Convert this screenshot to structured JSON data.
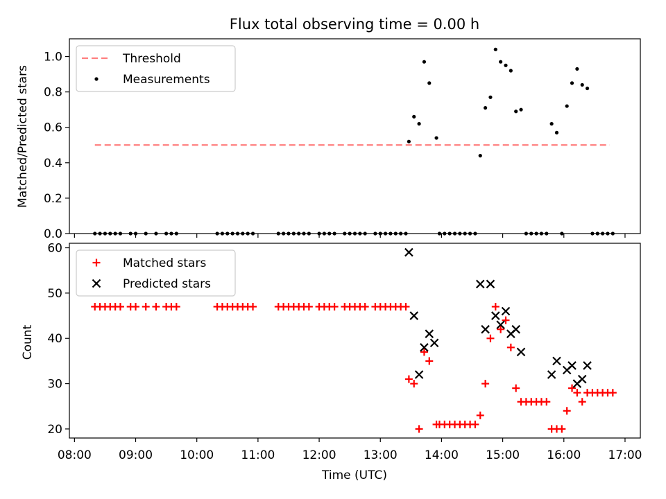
{
  "chart_data": [
    {
      "type": "scatter",
      "title": "Flux total observing time = 0.00 h",
      "ylabel": "Matched/Predicted stars",
      "xlabel": "",
      "ylim": [
        0,
        1.1
      ],
      "yticks": [
        "0.0",
        "0.2",
        "0.4",
        "0.6",
        "0.8",
        "1.0"
      ],
      "legend_position": "top-left",
      "grid": false,
      "threshold": {
        "name": "Threshold",
        "y": 0.5,
        "x_start": "08:20",
        "x_end": "16:45",
        "color": "#ff7f7f",
        "style": "dashed"
      },
      "series": [
        {
          "name": "Measurements",
          "color": "#000000",
          "marker": "dot",
          "points": [
            [
              "08:20",
              0
            ],
            [
              "08:25",
              0
            ],
            [
              "08:30",
              0
            ],
            [
              "08:35",
              0
            ],
            [
              "08:40",
              0
            ],
            [
              "08:45",
              0
            ],
            [
              "08:55",
              0
            ],
            [
              "09:00",
              0
            ],
            [
              "09:10",
              0
            ],
            [
              "09:20",
              0
            ],
            [
              "09:30",
              0
            ],
            [
              "09:35",
              0
            ],
            [
              "09:40",
              0
            ],
            [
              "10:20",
              0
            ],
            [
              "10:25",
              0
            ],
            [
              "10:30",
              0
            ],
            [
              "10:35",
              0
            ],
            [
              "10:40",
              0
            ],
            [
              "10:45",
              0
            ],
            [
              "10:50",
              0
            ],
            [
              "10:55",
              0
            ],
            [
              "11:20",
              0
            ],
            [
              "11:25",
              0
            ],
            [
              "11:30",
              0
            ],
            [
              "11:35",
              0
            ],
            [
              "11:40",
              0
            ],
            [
              "11:45",
              0
            ],
            [
              "11:50",
              0
            ],
            [
              "12:00",
              0
            ],
            [
              "12:05",
              0
            ],
            [
              "12:10",
              0
            ],
            [
              "12:15",
              0
            ],
            [
              "12:25",
              0
            ],
            [
              "12:30",
              0
            ],
            [
              "12:35",
              0
            ],
            [
              "12:40",
              0
            ],
            [
              "12:45",
              0
            ],
            [
              "12:55",
              0
            ],
            [
              "13:00",
              0
            ],
            [
              "13:05",
              0
            ],
            [
              "13:10",
              0
            ],
            [
              "13:15",
              0
            ],
            [
              "13:20",
              0
            ],
            [
              "13:25",
              0
            ],
            [
              "13:28",
              0.52
            ],
            [
              "13:33",
              0.66
            ],
            [
              "13:38",
              0.62
            ],
            [
              "13:43",
              0.97
            ],
            [
              "13:48",
              0.85
            ],
            [
              "13:55",
              0.54
            ],
            [
              "13:58",
              0
            ],
            [
              "14:03",
              0
            ],
            [
              "14:08",
              0
            ],
            [
              "14:13",
              0
            ],
            [
              "14:18",
              0
            ],
            [
              "14:23",
              0
            ],
            [
              "14:28",
              0
            ],
            [
              "14:33",
              0
            ],
            [
              "14:38",
              0.44
            ],
            [
              "14:43",
              0.71
            ],
            [
              "14:48",
              0.77
            ],
            [
              "14:53",
              1.04
            ],
            [
              "14:58",
              0.97
            ],
            [
              "15:03",
              0.95
            ],
            [
              "15:08",
              0.92
            ],
            [
              "15:13",
              0.69
            ],
            [
              "15:18",
              0.7
            ],
            [
              "15:23",
              0
            ],
            [
              "15:28",
              0
            ],
            [
              "15:33",
              0
            ],
            [
              "15:38",
              0
            ],
            [
              "15:43",
              0
            ],
            [
              "15:48",
              0.62
            ],
            [
              "15:53",
              0.57
            ],
            [
              "15:58",
              0
            ],
            [
              "16:03",
              0.72
            ],
            [
              "16:08",
              0.85
            ],
            [
              "16:13",
              0.93
            ],
            [
              "16:18",
              0.84
            ],
            [
              "16:23",
              0.82
            ],
            [
              "16:28",
              0
            ],
            [
              "16:33",
              0
            ],
            [
              "16:38",
              0
            ],
            [
              "16:43",
              0
            ],
            [
              "16:48",
              0
            ]
          ]
        }
      ]
    },
    {
      "type": "scatter",
      "title": "",
      "ylabel": "Count",
      "xlabel": "Time (UTC)",
      "xlim": [
        "07:55",
        "17:15"
      ],
      "ylim": [
        18,
        61
      ],
      "xticks": [
        "08:00",
        "09:00",
        "10:00",
        "11:00",
        "12:00",
        "13:00",
        "14:00",
        "15:00",
        "16:00",
        "17:00"
      ],
      "yticks": [
        "20",
        "30",
        "40",
        "50",
        "60"
      ],
      "legend_position": "top-left",
      "grid": false,
      "series": [
        {
          "name": "Matched stars",
          "color": "#ff0000",
          "marker": "plus",
          "points": [
            [
              "08:20",
              47
            ],
            [
              "08:25",
              47
            ],
            [
              "08:30",
              47
            ],
            [
              "08:35",
              47
            ],
            [
              "08:40",
              47
            ],
            [
              "08:45",
              47
            ],
            [
              "08:55",
              47
            ],
            [
              "09:00",
              47
            ],
            [
              "09:10",
              47
            ],
            [
              "09:20",
              47
            ],
            [
              "09:30",
              47
            ],
            [
              "09:35",
              47
            ],
            [
              "09:40",
              47
            ],
            [
              "10:20",
              47
            ],
            [
              "10:25",
              47
            ],
            [
              "10:30",
              47
            ],
            [
              "10:35",
              47
            ],
            [
              "10:40",
              47
            ],
            [
              "10:45",
              47
            ],
            [
              "10:50",
              47
            ],
            [
              "10:55",
              47
            ],
            [
              "11:20",
              47
            ],
            [
              "11:25",
              47
            ],
            [
              "11:30",
              47
            ],
            [
              "11:35",
              47
            ],
            [
              "11:40",
              47
            ],
            [
              "11:45",
              47
            ],
            [
              "11:50",
              47
            ],
            [
              "12:00",
              47
            ],
            [
              "12:05",
              47
            ],
            [
              "12:10",
              47
            ],
            [
              "12:15",
              47
            ],
            [
              "12:25",
              47
            ],
            [
              "12:30",
              47
            ],
            [
              "12:35",
              47
            ],
            [
              "12:40",
              47
            ],
            [
              "12:45",
              47
            ],
            [
              "12:55",
              47
            ],
            [
              "13:00",
              47
            ],
            [
              "13:05",
              47
            ],
            [
              "13:10",
              47
            ],
            [
              "13:15",
              47
            ],
            [
              "13:20",
              47
            ],
            [
              "13:25",
              47
            ],
            [
              "13:28",
              31
            ],
            [
              "13:33",
              30
            ],
            [
              "13:38",
              20
            ],
            [
              "13:43",
              37
            ],
            [
              "13:48",
              35
            ],
            [
              "13:55",
              21
            ],
            [
              "13:58",
              21
            ],
            [
              "14:03",
              21
            ],
            [
              "14:08",
              21
            ],
            [
              "14:13",
              21
            ],
            [
              "14:18",
              21
            ],
            [
              "14:23",
              21
            ],
            [
              "14:28",
              21
            ],
            [
              "14:33",
              21
            ],
            [
              "14:38",
              23
            ],
            [
              "14:43",
              30
            ],
            [
              "14:48",
              40
            ],
            [
              "14:53",
              47
            ],
            [
              "14:58",
              42
            ],
            [
              "15:03",
              44
            ],
            [
              "15:08",
              38
            ],
            [
              "15:13",
              29
            ],
            [
              "15:18",
              26
            ],
            [
              "15:23",
              26
            ],
            [
              "15:28",
              26
            ],
            [
              "15:33",
              26
            ],
            [
              "15:38",
              26
            ],
            [
              "15:43",
              26
            ],
            [
              "15:48",
              20
            ],
            [
              "15:53",
              20
            ],
            [
              "15:58",
              20
            ],
            [
              "16:03",
              24
            ],
            [
              "16:08",
              29
            ],
            [
              "16:13",
              28
            ],
            [
              "16:18",
              26
            ],
            [
              "16:23",
              28
            ],
            [
              "16:28",
              28
            ],
            [
              "16:33",
              28
            ],
            [
              "16:38",
              28
            ],
            [
              "16:43",
              28
            ],
            [
              "16:48",
              28
            ]
          ]
        },
        {
          "name": "Predicted stars",
          "color": "#000000",
          "marker": "x",
          "points": [
            [
              "13:28",
              59
            ],
            [
              "13:33",
              45
            ],
            [
              "13:38",
              32
            ],
            [
              "13:43",
              38
            ],
            [
              "13:48",
              41
            ],
            [
              "13:53",
              39
            ],
            [
              "14:38",
              52
            ],
            [
              "14:43",
              42
            ],
            [
              "14:48",
              52
            ],
            [
              "14:53",
              45
            ],
            [
              "14:58",
              43
            ],
            [
              "15:03",
              46
            ],
            [
              "15:08",
              41
            ],
            [
              "15:13",
              42
            ],
            [
              "15:18",
              37
            ],
            [
              "15:48",
              32
            ],
            [
              "15:53",
              35
            ],
            [
              "16:03",
              33
            ],
            [
              "16:08",
              34
            ],
            [
              "16:13",
              30
            ],
            [
              "16:18",
              31
            ],
            [
              "16:23",
              34
            ]
          ]
        }
      ]
    }
  ]
}
